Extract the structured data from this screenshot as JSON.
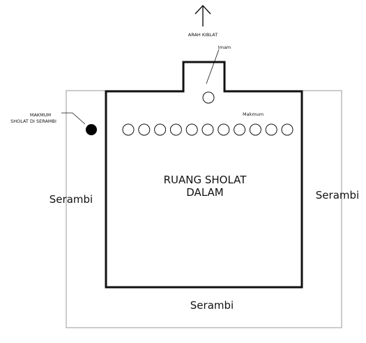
{
  "labels": {
    "qibla_direction": "ARAH KIBLAT",
    "imam": "Imam",
    "makmum": "Makmum",
    "makmum_serambi_line1": "MAKMUM",
    "makmum_serambi_line2": "SHOLAT DI SERAMBI",
    "inner_room_line1": "RUANG SHOLAT",
    "inner_room_line2": "DALAM",
    "porch_left": "Serambi",
    "porch_right": "Serambi",
    "porch_bottom": "Serambi"
  },
  "makmum_row_count": 11,
  "colors": {
    "wall": "#111111",
    "porch_outline": "#bbbbbb",
    "porch_worshipper": "#000000"
  }
}
